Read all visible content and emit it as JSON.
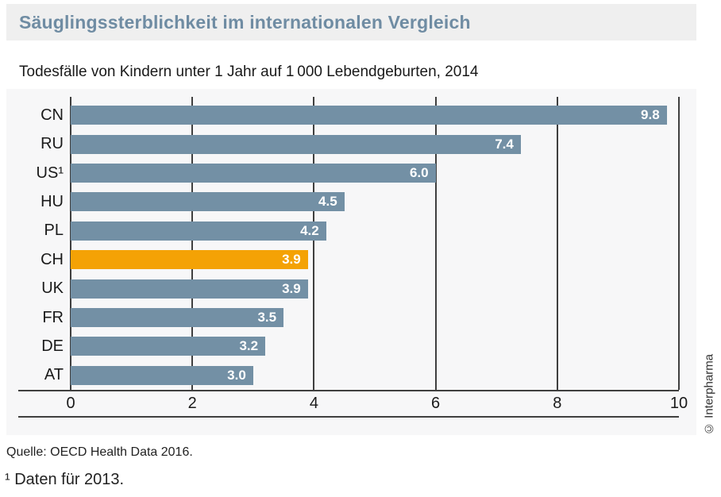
{
  "header": {
    "title": "Säuglingssterblichkeit im internationalen Vergleich",
    "subtitle": "Todesfälle von Kindern unter 1 Jahr auf 1 000 Lebendgeburten, 2014"
  },
  "chart_data": {
    "type": "bar",
    "orientation": "horizontal",
    "title": "Säuglingssterblichkeit im internationalen Vergleich",
    "subtitle": "Todesfälle von Kindern unter 1 Jahr auf 1 000 Lebendgeburten, 2014",
    "categories": [
      "CN",
      "RU",
      "US¹",
      "HU",
      "PL",
      "CH",
      "UK",
      "FR",
      "DE",
      "AT"
    ],
    "values": [
      9.8,
      7.4,
      6.0,
      4.5,
      4.2,
      3.9,
      3.9,
      3.5,
      3.2,
      3.0
    ],
    "value_labels": [
      "9.8",
      "7.4",
      "6.0",
      "4.5",
      "4.2",
      "3.9",
      "3.9",
      "3.5",
      "3.2",
      "3.0"
    ],
    "highlight_index": 5,
    "highlight_category": "CH",
    "x_ticks": [
      0,
      2,
      4,
      6,
      8,
      10
    ],
    "xlim": [
      0,
      10
    ],
    "grid": true,
    "legend": false,
    "bar_color": "#7390a5",
    "highlight_color": "#f4a205",
    "value_label_color": "#ffffff"
  },
  "colors": {
    "title_blue": "#6f8ca3",
    "panel_background": "#f7f7f8",
    "title_bar_background": "#efefef",
    "axis_line": "#3f3f3f"
  },
  "footer": {
    "source": "Quelle: OECD Health Data 2016.",
    "footnote": "¹ Daten für 2013.",
    "copyright": "© Interpharma"
  }
}
